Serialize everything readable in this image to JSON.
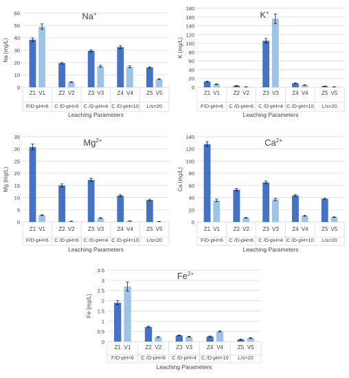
{
  "chart_data": [
    {
      "type": "bar",
      "title": "Na",
      "title_sup": "+",
      "ylabel": "Na (mg/L)",
      "xlabel": "Leaching Parameters",
      "ylim": [
        0,
        60
      ],
      "yticks": [
        0,
        10,
        20,
        30,
        40,
        50,
        60
      ],
      "pairs": [
        {
          "labels": [
            "Z1",
            "V1"
          ],
          "group": "F/D-pH=6"
        },
        {
          "labels": [
            "Z2",
            "V2"
          ],
          "group": "C /D-pH=6"
        },
        {
          "labels": [
            "Z3",
            "V3"
          ],
          "group": "C /D-pH=4"
        },
        {
          "labels": [
            "Z4",
            "V4"
          ],
          "group": "C /D-pH=10"
        },
        {
          "labels": [
            "Z5",
            "V5"
          ],
          "group": "L/s=20"
        }
      ],
      "series": [
        {
          "values": [
            38.5,
            19.5,
            29.5,
            32.5,
            16
          ],
          "errors": [
            1.5,
            0.6,
            0.8,
            1.0,
            0.5
          ]
        },
        {
          "values": [
            49,
            4.2,
            17,
            16.5,
            6.5
          ],
          "errors": [
            2.2,
            0.3,
            0.8,
            0.8,
            0.3
          ]
        }
      ],
      "colors": [
        "#4472C4",
        "#9DC3E6"
      ],
      "grid": true
    },
    {
      "type": "bar",
      "title": "K",
      "title_sup": "+",
      "ylabel": "K (mg/L)",
      "xlabel": "Leaching Parameters",
      "ylim": [
        0,
        180
      ],
      "yticks": [
        0,
        20,
        40,
        60,
        80,
        100,
        120,
        140,
        160,
        180
      ],
      "pairs": [
        {
          "labels": [
            "Z1",
            "V1"
          ],
          "group": "F/D-pH=6"
        },
        {
          "labels": [
            "Z2",
            "V2"
          ],
          "group": "C /D-pH=6"
        },
        {
          "labels": [
            "Z3",
            "V3"
          ],
          "group": "C /D-pH=4"
        },
        {
          "labels": [
            "Z4",
            "V4"
          ],
          "group": "C /D-pH=10"
        },
        {
          "labels": [
            "Z5",
            "V5"
          ],
          "group": "L/s=20"
        }
      ],
      "series": [
        {
          "values": [
            13,
            3.5,
            106,
            9,
            2.5
          ],
          "errors": [
            1.0,
            0.4,
            5.0,
            0.8,
            0.3
          ]
        },
        {
          "values": [
            7,
            1,
            156,
            5,
            1
          ],
          "errors": [
            0.6,
            0.2,
            11.0,
            0.5,
            0.2
          ]
        }
      ],
      "colors": [
        "#4472C4",
        "#9DC3E6"
      ],
      "grid": true
    },
    {
      "type": "bar",
      "title": "Mg",
      "title_sup": "2+",
      "ylabel": "Mg (mg/L)",
      "xlabel": "Leaching Parameters",
      "ylim": [
        0,
        35
      ],
      "yticks": [
        0,
        5,
        10,
        15,
        20,
        25,
        30,
        35
      ],
      "pairs": [
        {
          "labels": [
            "Z1",
            "V1"
          ],
          "group": "F/D-pH=6"
        },
        {
          "labels": [
            "Z2",
            "V2"
          ],
          "group": "C /D-pH=6"
        },
        {
          "labels": [
            "Z3",
            "V3"
          ],
          "group": "C /D-pH=4"
        },
        {
          "labels": [
            "Z4",
            "V4"
          ],
          "group": "C /D-pH=10"
        },
        {
          "labels": [
            "Z5",
            "V5"
          ],
          "group": "L/s=20"
        }
      ],
      "series": [
        {
          "values": [
            30.8,
            15,
            17.3,
            10.8,
            9
          ],
          "errors": [
            1.2,
            0.6,
            0.6,
            0.4,
            0.3
          ]
        },
        {
          "values": [
            2.8,
            0.3,
            1.6,
            0.4,
            0.2
          ],
          "errors": [
            0.2,
            0.05,
            0.15,
            0.05,
            0.05
          ]
        }
      ],
      "colors": [
        "#4472C4",
        "#9DC3E6"
      ],
      "grid": true
    },
    {
      "type": "bar",
      "title": "Ca",
      "title_sup": "2+",
      "ylabel": "Ca (mg/L)",
      "xlabel": "Leaching Parameters",
      "ylim": [
        0,
        140
      ],
      "yticks": [
        0,
        20,
        40,
        60,
        80,
        100,
        120,
        140
      ],
      "pairs": [
        {
          "labels": [
            "Z1",
            "V1"
          ],
          "group": "F/D-pH=6"
        },
        {
          "labels": [
            "Z2",
            "V2"
          ],
          "group": "C /D-pH=6"
        },
        {
          "labels": [
            "Z3",
            "V3"
          ],
          "group": "C /D-pH=4"
        },
        {
          "labels": [
            "Z4",
            "V4"
          ],
          "group": "C /D-pH=10"
        },
        {
          "labels": [
            "Z5",
            "V5"
          ],
          "group": "L/s=20"
        }
      ],
      "series": [
        {
          "values": [
            128,
            53,
            65,
            43.5,
            38
          ],
          "errors": [
            4.0,
            2.0,
            2.0,
            1.5,
            1.2
          ]
        },
        {
          "values": [
            35.5,
            7,
            37,
            10,
            8
          ],
          "errors": [
            2.0,
            0.6,
            2.0,
            0.6,
            0.5
          ]
        }
      ],
      "colors": [
        "#4472C4",
        "#9DC3E6"
      ],
      "grid": true
    },
    {
      "type": "bar",
      "title": "Fe",
      "title_sup": "2+",
      "ylabel": "Fe (mg/L)",
      "xlabel": "Leaching Parameters",
      "ylim": [
        0,
        3.5
      ],
      "yticks": [
        0,
        0.5,
        1,
        1.5,
        2,
        2.5,
        3,
        3.5
      ],
      "pairs": [
        {
          "labels": [
            "Z1",
            "V1"
          ],
          "group": "F/D-pH=6"
        },
        {
          "labels": [
            "Z2",
            "V2"
          ],
          "group": "C /D-pH=6"
        },
        {
          "labels": [
            "Z3",
            "V3"
          ],
          "group": "C /D-pH=4"
        },
        {
          "labels": [
            "Z4",
            "V4"
          ],
          "group": "C /D-pH=10"
        },
        {
          "labels": [
            "Z5",
            "V5"
          ],
          "group": "L/s=20"
        }
      ],
      "series": [
        {
          "values": [
            1.9,
            0.72,
            0.3,
            0.25,
            0.1
          ],
          "errors": [
            0.1,
            0.04,
            0.02,
            0.02,
            0.02
          ]
        },
        {
          "values": [
            2.7,
            0.22,
            0.24,
            0.5,
            0.17
          ],
          "errors": [
            0.22,
            0.02,
            0.02,
            0.03,
            0.02
          ]
        }
      ],
      "colors": [
        "#4472C4",
        "#9DC3E6"
      ],
      "grid": true
    }
  ]
}
